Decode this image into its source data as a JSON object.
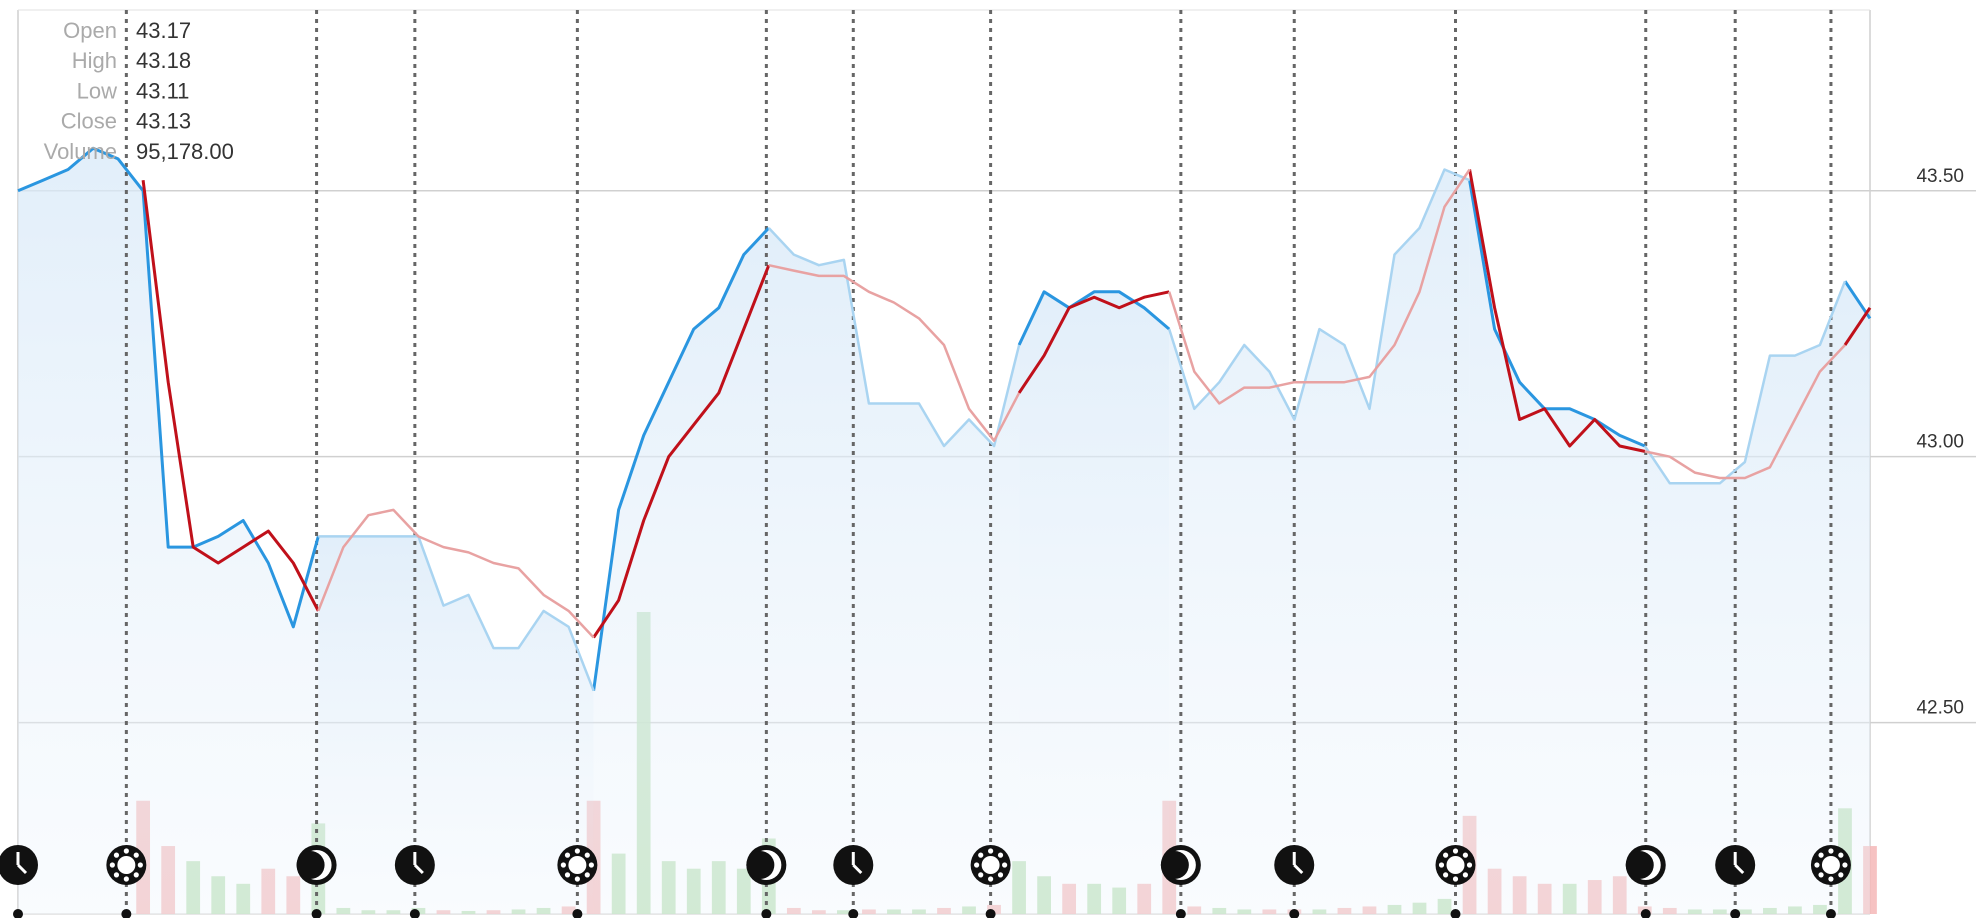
{
  "chart_data": {
    "type": "line",
    "ohlc": [
      {
        "label": "Open",
        "value": "43.17"
      },
      {
        "label": "High",
        "value": "43.18"
      },
      {
        "label": "Low",
        "value": "43.11"
      },
      {
        "label": "Close",
        "value": "43.13"
      },
      {
        "label": "Volume",
        "value": "95,178.00"
      }
    ],
    "ylim": [
      42.14,
      43.84
    ],
    "yticks": [
      {
        "value": 42.5,
        "label": "42.50"
      },
      {
        "value": 43.0,
        "label": "43.00"
      },
      {
        "value": 43.5,
        "label": "43.50"
      }
    ],
    "grid": true,
    "series": [
      {
        "color": "#2a96e0",
        "values": [
          43.5,
          43.52,
          43.54,
          43.58,
          43.56,
          43.5,
          42.83,
          42.83,
          42.85,
          42.88,
          42.8,
          42.68,
          42.85,
          null,
          null,
          null,
          null,
          null,
          null,
          null,
          null,
          null,
          null,
          42.56,
          42.9,
          43.04,
          43.14,
          43.24,
          43.28,
          43.38,
          43.43,
          null,
          null,
          null,
          null,
          null,
          null,
          null,
          null,
          null,
          43.21,
          43.31,
          43.28,
          43.31,
          43.31,
          43.28,
          43.24,
          null,
          null,
          null,
          null,
          null,
          null,
          null,
          null,
          null,
          null,
          null,
          43.52,
          43.24,
          43.14,
          43.09,
          43.09,
          43.07,
          43.04,
          43.02,
          null,
          null,
          null,
          null,
          null,
          null,
          null,
          43.33,
          43.26
        ]
      },
      {
        "color": "#a9d4f1",
        "values": [
          null,
          null,
          null,
          null,
          null,
          null,
          null,
          null,
          null,
          null,
          null,
          null,
          42.85,
          42.85,
          42.85,
          42.85,
          42.85,
          42.72,
          42.74,
          42.64,
          42.64,
          42.71,
          42.68,
          42.56,
          null,
          null,
          null,
          null,
          null,
          null,
          43.43,
          43.38,
          43.36,
          43.37,
          43.1,
          43.1,
          43.1,
          43.02,
          43.07,
          43.02,
          43.21,
          null,
          null,
          null,
          null,
          null,
          43.24,
          43.09,
          43.14,
          43.21,
          43.16,
          43.07,
          43.24,
          43.21,
          43.09,
          43.38,
          43.43,
          43.54,
          43.52,
          null,
          null,
          null,
          null,
          null,
          null,
          43.02,
          42.95,
          42.95,
          42.95,
          42.99,
          43.19,
          43.19,
          43.21,
          43.33,
          null
        ]
      },
      {
        "color": "#c0101a",
        "values": [
          null,
          null,
          null,
          null,
          null,
          43.52,
          43.14,
          42.83,
          42.8,
          42.83,
          42.86,
          42.8,
          42.71,
          null,
          null,
          null,
          null,
          null,
          null,
          null,
          null,
          null,
          null,
          42.66,
          42.73,
          42.88,
          43.0,
          43.06,
          43.12,
          43.24,
          43.36,
          null,
          null,
          null,
          null,
          null,
          null,
          null,
          null,
          null,
          43.12,
          43.19,
          43.28,
          43.3,
          43.28,
          43.3,
          43.31,
          null,
          null,
          null,
          null,
          null,
          null,
          null,
          null,
          null,
          null,
          null,
          43.54,
          43.28,
          43.07,
          43.09,
          43.02,
          43.07,
          43.02,
          43.01,
          null,
          null,
          null,
          null,
          null,
          null,
          null,
          43.21,
          43.28
        ]
      },
      {
        "color": "#e8a2a2",
        "values": [
          null,
          null,
          null,
          null,
          null,
          null,
          null,
          null,
          null,
          null,
          null,
          null,
          42.71,
          42.83,
          42.89,
          42.9,
          42.85,
          42.83,
          42.82,
          42.8,
          42.79,
          42.74,
          42.71,
          42.66,
          null,
          null,
          null,
          null,
          null,
          null,
          43.36,
          43.35,
          43.34,
          43.34,
          43.31,
          43.29,
          43.26,
          43.21,
          43.09,
          43.03,
          43.12,
          null,
          null,
          null,
          null,
          null,
          43.31,
          43.16,
          43.1,
          43.13,
          43.13,
          43.14,
          43.14,
          43.14,
          43.15,
          43.21,
          43.31,
          43.47,
          43.54,
          null,
          null,
          null,
          null,
          null,
          null,
          43.01,
          43.0,
          42.97,
          42.96,
          42.96,
          42.98,
          43.07,
          43.16,
          43.21,
          null
        ]
      }
    ],
    "volume": {
      "colors": [
        "#b9dfb4",
        "#f5b7b7"
      ],
      "values": [
        0,
        0,
        0,
        0,
        0,
        150000,
        90000,
        70000,
        50000,
        40000,
        60000,
        50000,
        120000,
        8000,
        5000,
        5000,
        8000,
        5000,
        4000,
        5000,
        6000,
        8000,
        10000,
        150000,
        80000,
        400000,
        70000,
        60000,
        70000,
        60000,
        100000,
        8000,
        5000,
        5000,
        6000,
        6000,
        6000,
        8000,
        10000,
        12000,
        70000,
        50000,
        40000,
        40000,
        35000,
        40000,
        150000,
        10000,
        8000,
        6000,
        6000,
        6000,
        6000,
        8000,
        10000,
        12000,
        15000,
        20000,
        130000,
        60000,
        50000,
        40000,
        40000,
        45000,
        50000,
        10000,
        8000,
        6000,
        6000,
        6000,
        8000,
        10000,
        12000,
        140000,
        90000
      ]
    }
  }
}
